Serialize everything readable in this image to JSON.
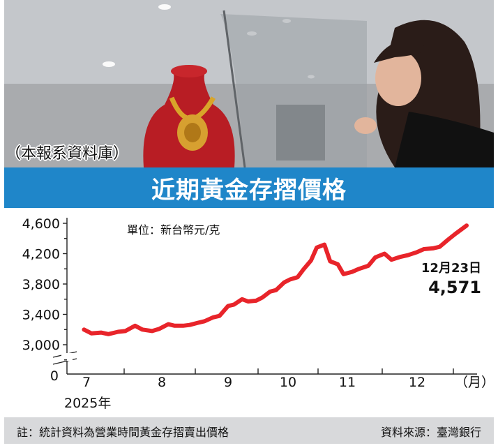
{
  "photo": {
    "credit": "（本報系資料庫）"
  },
  "header": {
    "title": "近期黃金存摺價格"
  },
  "chart_data": {
    "type": "line",
    "unit": "單位：新台幣元/克",
    "x_ticks": [
      "7",
      "8",
      "9",
      "10",
      "11",
      "12"
    ],
    "x_unit": "（月）",
    "year_label": "2025年",
    "y_ticks": [
      "4,600",
      "4,200",
      "3,800",
      "3,400",
      "3,000"
    ],
    "y_zero": "0",
    "ylim": [
      3000,
      4600
    ],
    "series": [
      {
        "color": "#e8242a",
        "x": [
          "2025-06-30",
          "2025-07-03",
          "2025-07-07",
          "2025-07-10",
          "2025-07-14",
          "2025-07-17",
          "2025-07-21",
          "2025-07-24",
          "2025-07-28",
          "2025-07-31",
          "2025-08-04",
          "2025-08-07",
          "2025-08-11",
          "2025-08-14",
          "2025-08-18",
          "2025-08-21",
          "2025-08-25",
          "2025-08-28",
          "2025-09-01",
          "2025-09-04",
          "2025-09-08",
          "2025-09-11",
          "2025-09-15",
          "2025-09-18",
          "2025-09-22",
          "2025-09-25",
          "2025-09-29",
          "2025-10-02",
          "2025-10-06",
          "2025-10-09",
          "2025-10-13",
          "2025-10-16",
          "2025-10-20",
          "2025-10-23",
          "2025-10-27",
          "2025-10-30",
          "2025-11-03",
          "2025-11-06",
          "2025-11-10",
          "2025-11-13",
          "2025-11-17",
          "2025-11-20",
          "2025-11-24",
          "2025-11-27",
          "2025-12-01",
          "2025-12-04",
          "2025-12-08",
          "2025-12-11",
          "2025-12-15",
          "2025-12-18",
          "2025-12-23"
        ],
        "values": [
          3200,
          3150,
          3160,
          3140,
          3170,
          3180,
          3250,
          3200,
          3180,
          3210,
          3270,
          3250,
          3250,
          3260,
          3290,
          3310,
          3360,
          3380,
          3510,
          3530,
          3600,
          3570,
          3580,
          3620,
          3700,
          3720,
          3820,
          3860,
          3890,
          3990,
          4110,
          4280,
          4320,
          4100,
          4060,
          3930,
          3960,
          4000,
          4040,
          4150,
          4200,
          4120,
          4160,
          4180,
          4220,
          4260,
          4270,
          4290,
          4390,
          4460,
          4571
        ]
      }
    ],
    "annotation": {
      "date": "12月23日",
      "value": "4,571"
    }
  },
  "footer": {
    "note": "註：統計資料為營業時間黃金存摺賣出價格",
    "source": "資料來源：臺灣銀行"
  }
}
